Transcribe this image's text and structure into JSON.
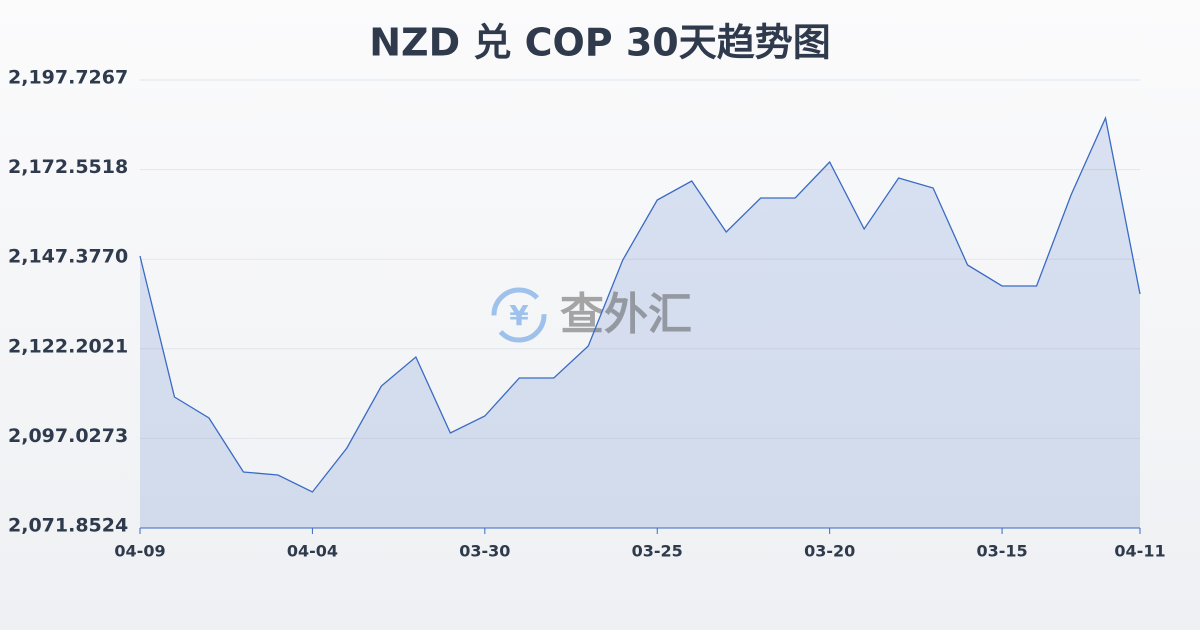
{
  "chart_data": {
    "type": "area",
    "title": "NZD 兑 COP 30天趋势图",
    "watermark": "查外汇",
    "categories": [
      "04-09",
      null,
      null,
      null,
      null,
      "04-04",
      null,
      null,
      null,
      null,
      "03-30",
      null,
      null,
      null,
      null,
      "03-25",
      null,
      null,
      null,
      null,
      "03-20",
      null,
      null,
      null,
      null,
      "03-15",
      null,
      null,
      null,
      "04-11"
    ],
    "values": [
      2148.27,
      2108.66,
      2102.76,
      2087.59,
      2086.74,
      2081.97,
      2094.33,
      2111.75,
      2119.9,
      2098.54,
      2103.32,
      2114.0,
      2114.0,
      2122.99,
      2147.15,
      2164.01,
      2169.35,
      2155.02,
      2164.57,
      2164.57,
      2174.69,
      2155.86,
      2170.19,
      2167.38,
      2145.75,
      2139.85,
      2139.85,
      2165.41,
      2187.05,
      2137.6
    ],
    "color": "#3a6bc4",
    "ylim": [
      2071.8524,
      2197.7267
    ],
    "yticks": [
      {
        "value": 2071.8524,
        "label": "2,071.8524"
      },
      {
        "value": 2097.0273,
        "label": "2,097.0273"
      },
      {
        "value": 2122.2021,
        "label": "2,122.2021"
      },
      {
        "value": 2147.377,
        "label": "2,147.3770"
      },
      {
        "value": 2172.5518,
        "label": "2,172.5518"
      },
      {
        "value": 2197.7267,
        "label": "2,197.7267"
      }
    ],
    "grid": true
  }
}
